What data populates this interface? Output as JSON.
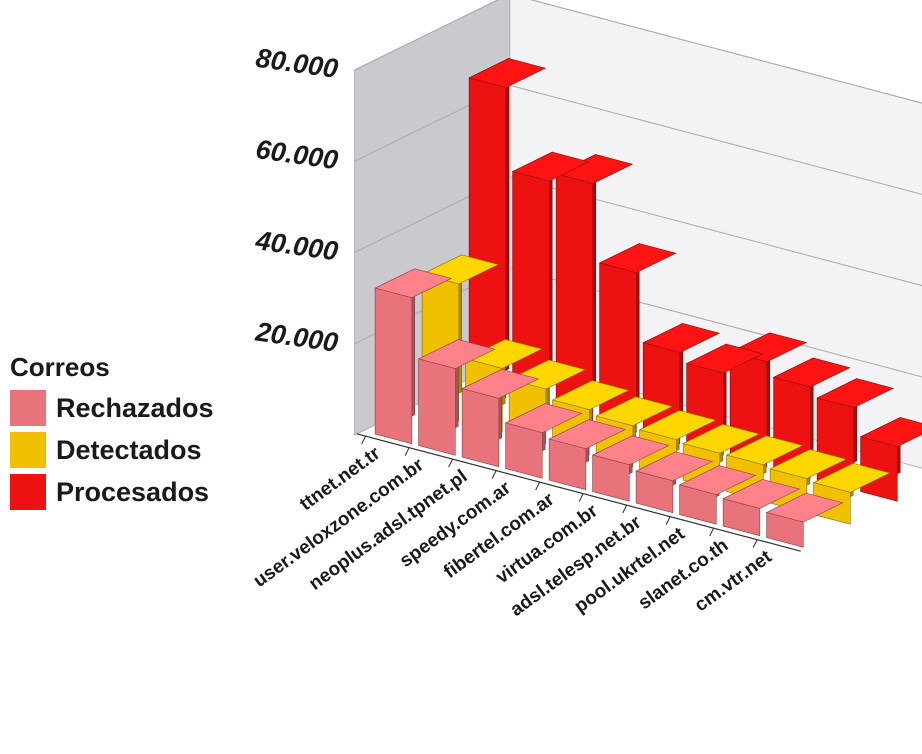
{
  "chart_data": {
    "type": "bar",
    "subtype": "3d-clustered-columns",
    "categories": [
      "ttnet.net.tr",
      "user.veloxzone.com.br",
      "neoplus.adsl.tpnet.pl",
      "speedy.com.ar",
      "fibertel.com.ar",
      "virtua.com.br",
      "adsl.telesp.net.br",
      "pool.ukrtel.net",
      "slanet.co.th",
      "cm.vtr.net"
    ],
    "series": [
      {
        "name": "Rechazados",
        "color": "#e8737a",
        "values": [
          32000,
          19000,
          15000,
          10000,
          9000,
          8000,
          7000,
          6500,
          6000,
          5500
        ]
      },
      {
        "name": "Detectados",
        "color": "#f1c000",
        "values": [
          30000,
          14000,
          12000,
          10000,
          9000,
          8500,
          8000,
          8000,
          7500,
          7000
        ]
      },
      {
        "name": "Procesados",
        "color": "#ee1111",
        "values": [
          68000,
          50000,
          52000,
          35000,
          20000,
          18000,
          23000,
          20000,
          18000,
          12000
        ]
      }
    ],
    "ylim": [
      0,
      80000
    ],
    "yticks": [
      {
        "value": 20000,
        "label": "20.000"
      },
      {
        "value": 40000,
        "label": "40.000"
      },
      {
        "value": 60000,
        "label": "60.000"
      },
      {
        "value": 80000,
        "label": "80.000"
      }
    ],
    "legend": {
      "title": "Correos",
      "placement": "left"
    },
    "grid": true
  }
}
